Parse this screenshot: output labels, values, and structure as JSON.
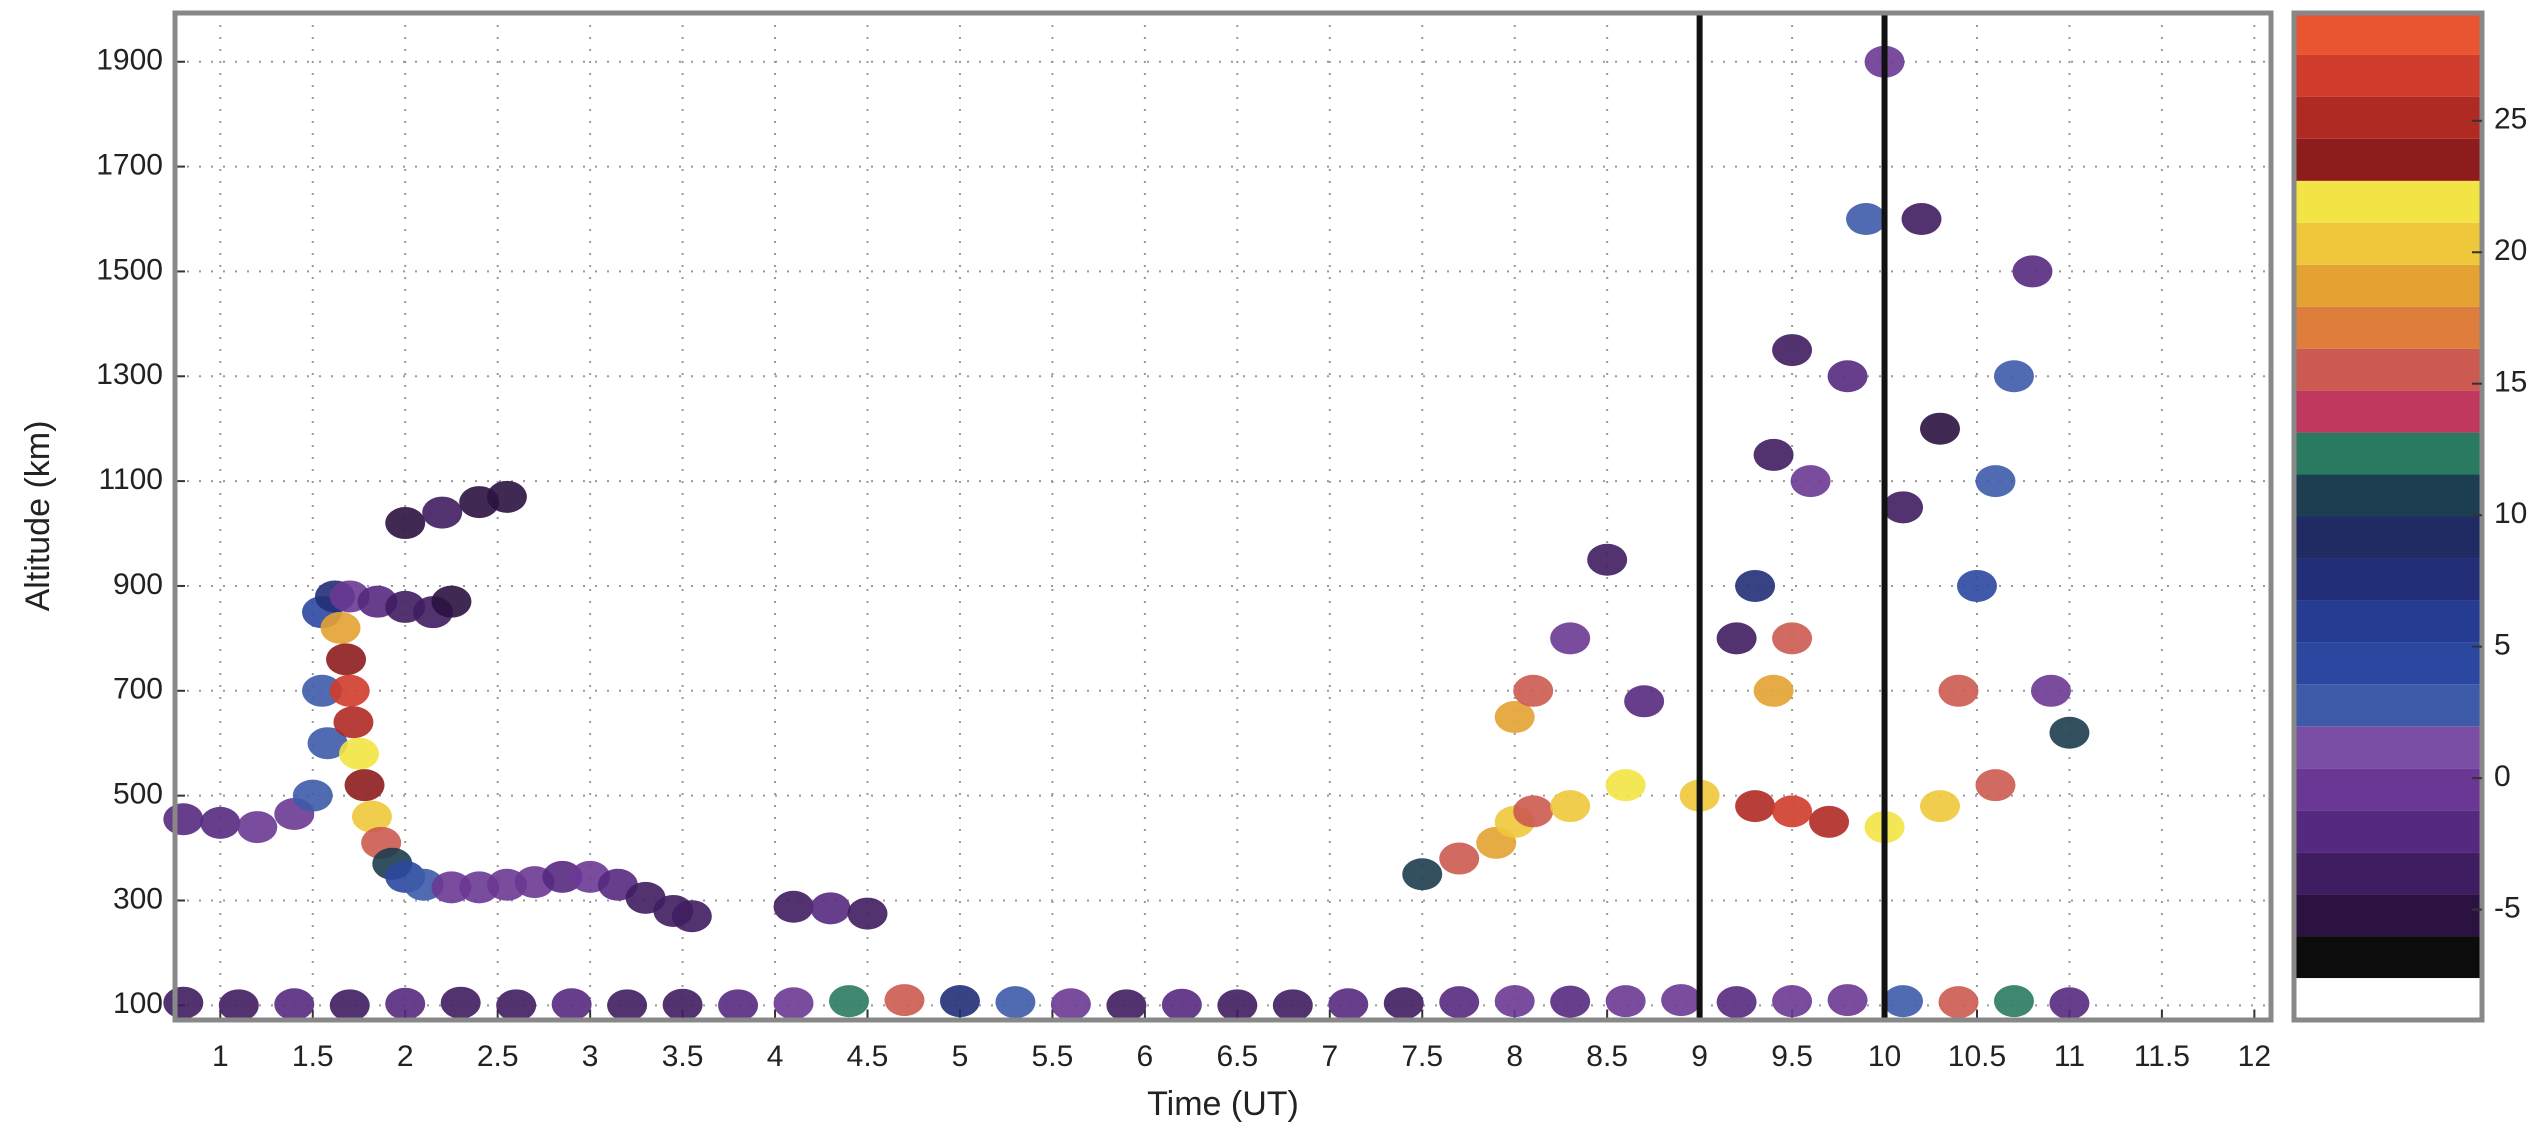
{
  "chart_data": {
    "type": "scatter",
    "xlabel": "Time (UT)",
    "ylabel": "Altitude (km)",
    "xlim": [
      0.755,
      12.09
    ],
    "ylim": [
      72,
      1993
    ],
    "xticks": [
      1,
      1.5,
      2,
      2.5,
      3,
      3.5,
      4,
      4.5,
      5,
      5.5,
      6,
      6.5,
      7,
      7.5,
      8,
      8.5,
      9,
      9.5,
      10,
      10.5,
      11,
      11.5,
      12
    ],
    "yticks": [
      100,
      300,
      500,
      700,
      900,
      1100,
      1300,
      1500,
      1700,
      1900
    ],
    "grid": true,
    "vlines": [
      9,
      10
    ],
    "colorbar": {
      "clim": [
        -9.2,
        29.1
      ],
      "ticks": [
        -5,
        0,
        5,
        10,
        15,
        20,
        25
      ],
      "colors": [
        "#ffffff",
        "#0c0c0c",
        "#2b1240",
        "#3f1d60",
        "#55297f",
        "#6a3894",
        "#7b4ea6",
        "#3d5ba8",
        "#2b47a0",
        "#263b92",
        "#222f78",
        "#1f2b62",
        "#1d3d50",
        "#2a7a62",
        "#c0385e",
        "#cc5a50",
        "#de7d3c",
        "#e4a232",
        "#eec83a",
        "#f2e444",
        "#8e1c1c",
        "#b02a24",
        "#d03c2c",
        "#e85530"
      ]
    },
    "x": [
      0.8,
      1.1,
      1.4,
      1.7,
      2.0,
      2.3,
      2.6,
      2.9,
      3.2,
      3.5,
      3.8,
      4.1,
      4.4,
      4.7,
      5.0,
      5.3,
      5.6,
      5.9,
      6.2,
      6.5,
      6.8,
      7.1,
      7.4,
      7.7,
      8.0,
      8.3,
      8.6,
      8.9,
      9.2,
      9.5,
      9.8,
      10.1,
      10.4,
      10.7,
      11.0,
      0.8,
      1.0,
      1.2,
      1.4,
      1.5,
      1.55,
      1.58,
      1.55,
      1.62,
      1.65,
      1.68,
      1.7,
      1.72,
      1.75,
      1.78,
      1.82,
      1.87,
      1.93,
      2.0,
      2.1,
      2.25,
      2.4,
      2.55,
      2.7,
      2.85,
      3.0,
      3.15,
      3.3,
      3.45,
      3.55,
      1.7,
      1.85,
      2.0,
      2.15,
      2.25,
      2.0,
      2.2,
      2.4,
      2.55,
      4.1,
      4.3,
      4.5,
      8.3,
      8.5,
      8.7,
      9.2,
      9.4,
      9.5,
      9.6,
      9.8,
      9.9,
      10.0,
      10.1,
      10.2,
      10.3,
      10.5,
      10.6,
      10.7,
      10.8,
      10.9,
      11.0,
      7.5,
      7.7,
      7.9,
      8.0,
      8.1,
      8.3,
      8.6,
      9.0,
      9.3,
      9.4,
      9.5,
      9.5,
      9.7,
      10.0,
      10.3,
      10.4,
      10.6,
      8.0,
      8.1,
      9.3
    ],
    "y": [
      105,
      100,
      102,
      100,
      103,
      105,
      100,
      102,
      100,
      101,
      100,
      104,
      108,
      110,
      108,
      106,
      102,
      100,
      101,
      100,
      100,
      102,
      104,
      106,
      108,
      107,
      108,
      110,
      106,
      108,
      110,
      108,
      106,
      108,
      104,
      455,
      448,
      440,
      465,
      500,
      700,
      600,
      850,
      880,
      820,
      760,
      700,
      640,
      580,
      520,
      460,
      410,
      370,
      345,
      330,
      325,
      325,
      330,
      335,
      345,
      345,
      330,
      305,
      280,
      270,
      880,
      870,
      860,
      850,
      870,
      1020,
      1040,
      1060,
      1070,
      288,
      285,
      275,
      800,
      950,
      680,
      800,
      1150,
      1350,
      1100,
      1300,
      1600,
      1900,
      1050,
      1600,
      1200,
      900,
      1100,
      1300,
      1500,
      700,
      620,
      350,
      380,
      410,
      450,
      470,
      480,
      520,
      500,
      480,
      700,
      470,
      800,
      450,
      440,
      480,
      700,
      520,
      650,
      700,
      900
    ],
    "values": [
      -3,
      -3,
      -2,
      -3,
      -2,
      -3,
      -3,
      -2,
      -3,
      -3,
      -2,
      -1,
      12,
      15,
      8,
      3,
      -1,
      -3,
      -2,
      -3,
      -3,
      -2,
      -3,
      -2,
      -1,
      -2,
      -1,
      0,
      -2,
      -1,
      0,
      3,
      15,
      12,
      -2,
      -2,
      -2,
      -1,
      0,
      2,
      3,
      2,
      5,
      8,
      18,
      24,
      26,
      25,
      22,
      24,
      20,
      15,
      10,
      5,
      2,
      0,
      -1,
      0,
      -1,
      -2,
      0,
      -2,
      -3,
      -4,
      -4,
      0,
      -2,
      -3,
      -4,
      -5,
      -5,
      -4,
      -5,
      -6,
      -3,
      -2,
      -4,
      0,
      -3,
      -2,
      -3,
      -4,
      -4,
      0,
      -2,
      2,
      0,
      -4,
      -3,
      -5,
      5,
      3,
      2,
      -2,
      0,
      10,
      10,
      15,
      18,
      20,
      16,
      20,
      22,
      20,
      25,
      18,
      27,
      15,
      25,
      22,
      20,
      15,
      15,
      18,
      15,
      8
    ]
  }
}
